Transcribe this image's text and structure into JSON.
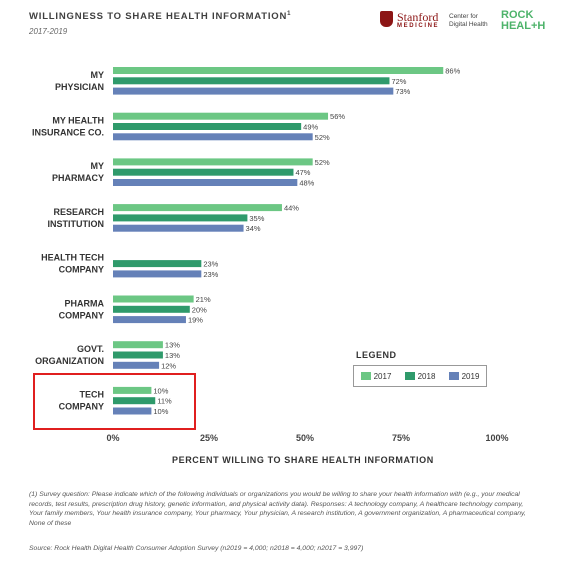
{
  "header": {
    "title": "WILLINGNESS TO SHARE HEALTH INFORMATION",
    "title_footnote": "1",
    "subtitle": "2017-2019"
  },
  "logos": {
    "stanford_name": "Stanford",
    "stanford_medicine": "MEDICINE",
    "center_line1": "Center for",
    "center_line2": "Digital Health",
    "rock_line1": "ROCK",
    "rock_line2": "HEAL+H"
  },
  "chart_data": {
    "type": "bar",
    "orientation": "horizontal",
    "categories": [
      [
        "MY",
        "PHYSICIAN"
      ],
      [
        "MY HEALTH",
        "INSURANCE CO."
      ],
      [
        "MY",
        "PHARMACY"
      ],
      [
        "RESEARCH",
        "INSTITUTION"
      ],
      [
        "HEALTH TECH",
        "COMPANY"
      ],
      [
        "PHARMA",
        "COMPANY"
      ],
      [
        "GOVT.",
        "ORGANIZATION"
      ],
      [
        "TECH",
        "COMPANY"
      ]
    ],
    "series": [
      {
        "name": "2017",
        "color": "#6cc784",
        "values": [
          86,
          56,
          52,
          44,
          null,
          21,
          13,
          10
        ]
      },
      {
        "name": "2018",
        "color": "#2f9a6b",
        "values": [
          72,
          49,
          47,
          35,
          23,
          20,
          13,
          11
        ]
      },
      {
        "name": "2019",
        "color": "#6581b8",
        "values": [
          73,
          52,
          48,
          34,
          23,
          19,
          12,
          10
        ]
      }
    ],
    "xlim": [
      0,
      100
    ],
    "xticks": [
      "0%",
      "25%",
      "50%",
      "75%",
      "100%"
    ],
    "xlabel": "PERCENT WILLING TO SHARE HEALTH INFORMATION",
    "value_suffix": "%",
    "legend_title": "LEGEND",
    "legend_position": "right",
    "grid": false,
    "highlighted_category": "TECH COMPANY"
  },
  "footer": {
    "footnote": "(1) Survey question: Please indicate which of the following individuals or organizations you would be willing to share your health information with (e.g., your medical records, test results, prescription drug history, genetic information, and physical activity data). Responses: A technology company, A healthcare technology company, Your family members, Your health insurance company, Your pharmacy, Your physician, A research institution, A government organization, A pharmaceutical company, None of these",
    "source": "Source: Rock Health Digital Health Consumer Adoption Survey (n2019 = 4,000; n2018 = 4,000; n2017 = 3,997)"
  }
}
